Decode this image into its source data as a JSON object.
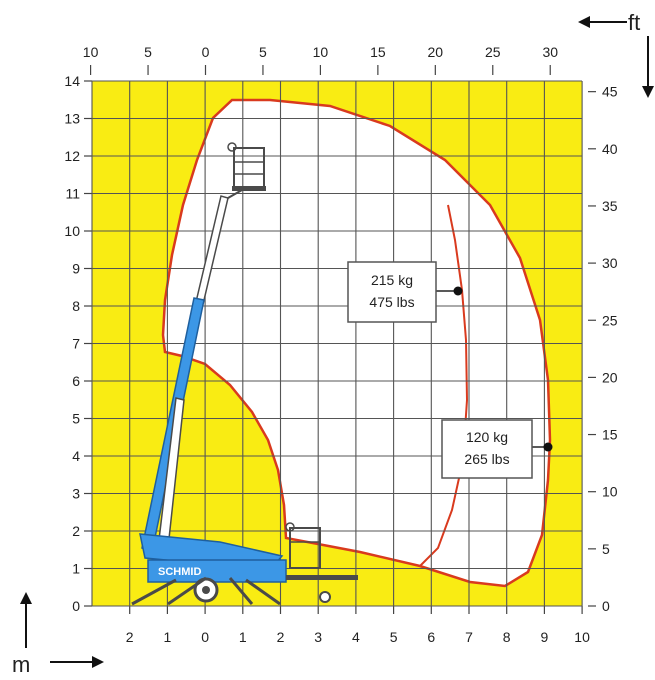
{
  "colors": {
    "background": "#f9ec13",
    "envelope_fill": "#ffffff",
    "envelope_stroke": "#d93a1e",
    "grid": "#555555",
    "lift_blue": "#3c97e6",
    "lift_body": "#4a4a4a"
  },
  "units": {
    "feet_label": "ft",
    "meter_label": "m"
  },
  "axes": {
    "top_ft_labels": [
      "10",
      "5",
      "0",
      "5",
      "10",
      "15",
      "20",
      "25",
      "30"
    ],
    "bottom_m_labels": [
      "2",
      "1",
      "0",
      "1",
      "2",
      "3",
      "4",
      "5",
      "6",
      "7",
      "8",
      "9",
      "10"
    ],
    "left_m_labels": [
      "14",
      "13",
      "12",
      "11",
      "10",
      "9",
      "8",
      "7",
      "6",
      "5",
      "4",
      "3",
      "2",
      "1",
      "0"
    ],
    "right_ft_labels": [
      "45",
      "40",
      "35",
      "30",
      "25",
      "20",
      "15",
      "10",
      "5",
      "0"
    ]
  },
  "load_zones": [
    {
      "kg": "215 kg",
      "lbs": "475 lbs"
    },
    {
      "kg": "120 kg",
      "lbs": "265 lbs"
    }
  ],
  "machine": {
    "brand": "SCHMID"
  }
}
